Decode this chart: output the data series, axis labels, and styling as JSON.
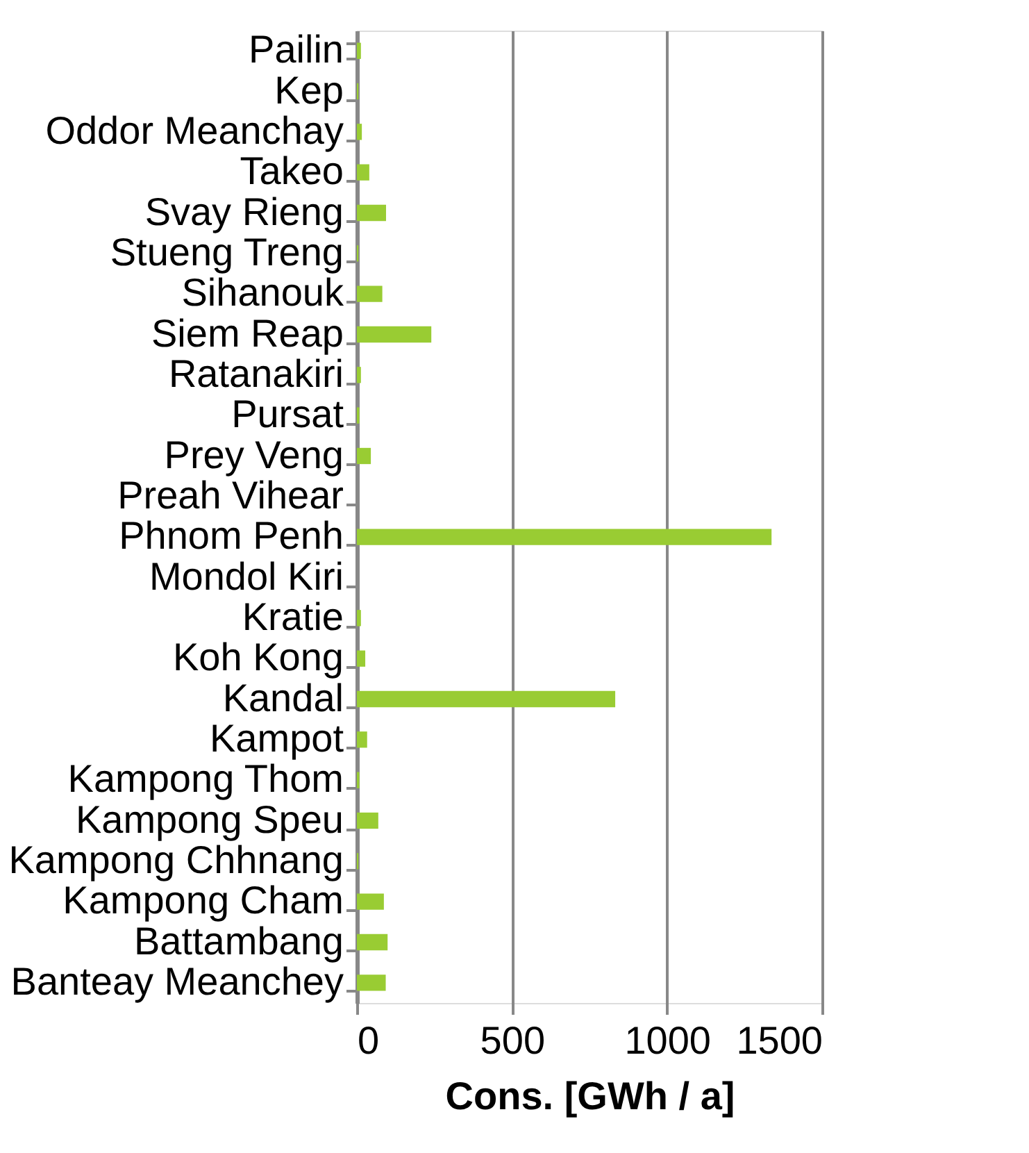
{
  "chart_data": {
    "type": "bar",
    "orientation": "horizontal",
    "xlabel": "Cons. [GWh / a]",
    "categories": [
      "Pailin",
      "Kep",
      "Oddor Meanchay",
      "Takeo",
      "Svay Rieng",
      "Stueng Treng",
      "Sihanouk",
      "Siem Reap",
      "Ratanakiri",
      "Pursat",
      "Prey Veng",
      "Preah Vihear",
      "Phnom Penh",
      "Mondol Kiri",
      "Kratie",
      "Koh Kong",
      "Kandal",
      "Kampot",
      "Kampong Thom",
      "Kampong Speu",
      "Kampong Chhnang",
      "Kampong Cham",
      "Battambang",
      "Banteay Meanchey"
    ],
    "values": [
      13,
      5,
      16,
      40,
      94,
      5,
      82,
      240,
      13,
      8,
      45,
      0,
      1337,
      0,
      13,
      27,
      833,
      33,
      8,
      69,
      5,
      87,
      99,
      93
    ],
    "color": "#99cc33",
    "xlim": [
      0,
      1500
    ],
    "xticks": [
      0,
      500,
      1000,
      1500
    ],
    "grid": "x"
  }
}
